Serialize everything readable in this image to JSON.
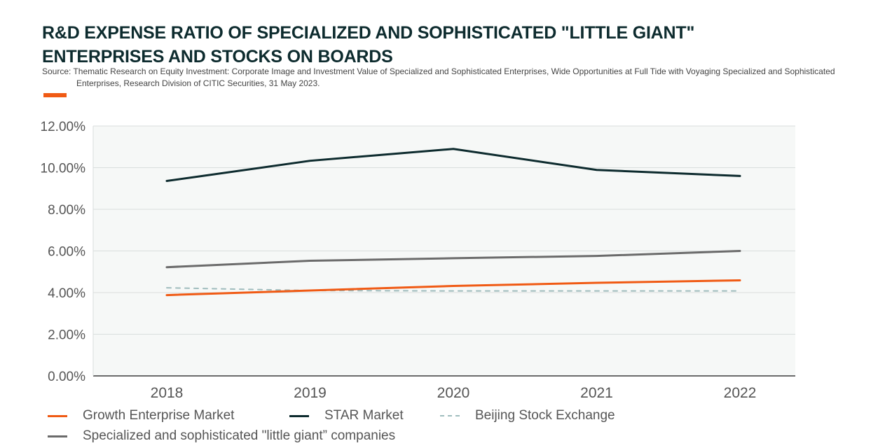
{
  "header": {
    "title": "R&D EXPENSE RATIO OF SPECIALIZED AND SOPHISTICATED \"LITTLE GIANT\" ENTERPRISES AND STOCKS ON BOARDS",
    "source": "Source: Thematic Research on Equity Investment: Corporate Image and Investment Value of Specialized and Sophisticated Enterprises, Wide Opportunities at Full Tide with Voyaging Specialized and Sophisticated Enterprises, Research Division of CITIC Securities, 31 May 2023."
  },
  "colors": {
    "accent": "#f05a14",
    "plot_bg": "#f6f8f7",
    "grid": "#d9dedd",
    "axis": "#6b6b6b"
  },
  "chart_data": {
    "type": "line",
    "categories": [
      "2018",
      "2019",
      "2020",
      "2021",
      "2022"
    ],
    "ylim": [
      0,
      12
    ],
    "yticks": [
      "0.00%",
      "2.00%",
      "4.00%",
      "6.00%",
      "8.00%",
      "10.00%",
      "12.00%"
    ],
    "grid": true,
    "legend_position": "bottom",
    "series": [
      {
        "name": "Growth Enterprise Market",
        "values": [
          3.88,
          4.1,
          4.32,
          4.47,
          4.59
        ],
        "color": "#f05a14",
        "dash": "solid"
      },
      {
        "name": "STAR Market",
        "values": [
          9.36,
          10.33,
          10.9,
          9.89,
          9.6
        ],
        "color": "#0d2b2e",
        "dash": "solid"
      },
      {
        "name": "Beijing Stock Exchange",
        "values": [
          4.23,
          4.1,
          4.08,
          4.08,
          4.08
        ],
        "color": "#9fbcbd",
        "dash": "dashed"
      },
      {
        "name": "Specialized and sophisticated \"little giant” companies",
        "values": [
          5.22,
          5.53,
          5.65,
          5.76,
          6.0
        ],
        "color": "#6b6b6b",
        "dash": "solid"
      }
    ]
  }
}
